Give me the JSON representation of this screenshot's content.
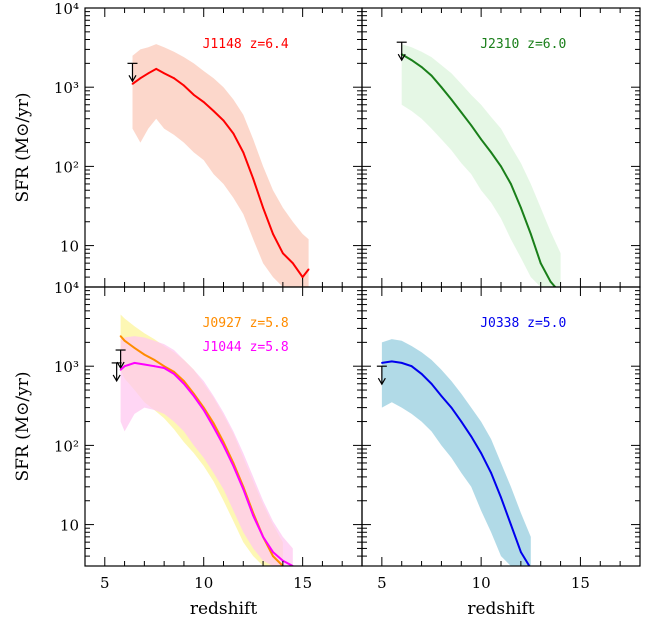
{
  "chart_data": [
    {
      "type": "line",
      "panel": "top-left",
      "xlabel": "",
      "ylabel": "SFR (M⊙/yr)",
      "xlim": [
        4,
        18
      ],
      "ylim": [
        3,
        10000
      ],
      "yscale": "log",
      "yticks": [
        "10",
        "10²",
        "10³",
        "10⁴"
      ],
      "xticks": [],
      "series": [
        {
          "name": "J1148 z=6.4",
          "color": "#ff0000",
          "band_color": "#fcd5c8",
          "x": [
            6.4,
            6.8,
            7.2,
            7.6,
            8.0,
            8.5,
            9.0,
            9.5,
            10.0,
            10.5,
            11.0,
            11.5,
            12.0,
            12.5,
            13.0,
            13.5,
            14.0,
            14.5,
            15.0,
            15.3
          ],
          "y": [
            1100,
            1300,
            1500,
            1700,
            1500,
            1300,
            1050,
            800,
            650,
            500,
            380,
            260,
            150,
            70,
            30,
            14,
            8,
            6,
            4,
            5
          ],
          "band_low": [
            300,
            200,
            300,
            400,
            300,
            250,
            200,
            150,
            120,
            80,
            60,
            40,
            25,
            12,
            6,
            4,
            3,
            3,
            3,
            3
          ],
          "band_high": [
            2500,
            3000,
            3200,
            3500,
            3200,
            2800,
            2400,
            2000,
            1600,
            1300,
            1000,
            700,
            450,
            220,
            100,
            50,
            30,
            20,
            14,
            12
          ],
          "upper_limit": {
            "x": 6.4,
            "y": 2000
          }
        }
      ]
    },
    {
      "type": "line",
      "panel": "top-right",
      "xlabel": "",
      "ylabel": "",
      "xlim": [
        4,
        18
      ],
      "ylim": [
        3,
        10000
      ],
      "yscale": "log",
      "series": [
        {
          "name": "J2310 z=6.0",
          "color": "#1a7f1a",
          "band_color": "#e4f7e4",
          "x": [
            6.0,
            6.5,
            7.0,
            7.5,
            8.0,
            8.5,
            9.0,
            9.5,
            10.0,
            10.5,
            11.0,
            11.5,
            12.0,
            12.5,
            13.0,
            13.5,
            14.0
          ],
          "y": [
            2600,
            2200,
            1800,
            1400,
            1000,
            700,
            480,
            330,
            220,
            150,
            100,
            60,
            30,
            14,
            6,
            3.5,
            2.5
          ],
          "band_low": [
            600,
            500,
            400,
            300,
            220,
            160,
            110,
            80,
            50,
            35,
            22,
            12,
            7,
            4,
            3,
            3,
            3
          ],
          "band_high": [
            3500,
            3200,
            2800,
            2400,
            1900,
            1500,
            1100,
            800,
            600,
            420,
            300,
            180,
            110,
            60,
            30,
            15,
            8
          ],
          "upper_limit": {
            "x": 6.0,
            "y": 3700
          }
        }
      ]
    },
    {
      "type": "line",
      "panel": "bottom-left",
      "xlabel": "redshift",
      "ylabel": "SFR (M⊙/yr)",
      "xlim": [
        4,
        18
      ],
      "ylim": [
        3,
        10000
      ],
      "yscale": "log",
      "yticks": [
        "10",
        "10²",
        "10³",
        "10⁴"
      ],
      "xticks": [
        "5",
        "10",
        "15"
      ],
      "series": [
        {
          "name": "J0927 z=5.8",
          "color": "#ff8c00",
          "band_color": "#fdf7b0",
          "x": [
            5.8,
            6.0,
            6.5,
            7.0,
            7.5,
            8.0,
            8.5,
            9.0,
            9.5,
            10.0,
            10.5,
            11.0,
            11.5,
            12.0,
            12.5,
            13.0,
            13.5,
            14.0
          ],
          "y": [
            2400,
            2100,
            1700,
            1400,
            1200,
            1000,
            850,
            650,
            450,
            300,
            190,
            110,
            60,
            30,
            14,
            7,
            4,
            3
          ],
          "band_low": [
            900,
            700,
            500,
            350,
            280,
            220,
            160,
            110,
            80,
            55,
            35,
            20,
            11,
            6,
            4,
            3,
            3,
            3
          ],
          "band_high": [
            4500,
            4000,
            3200,
            2600,
            2200,
            1800,
            1500,
            1200,
            900,
            600,
            400,
            240,
            140,
            70,
            35,
            18,
            10,
            6
          ],
          "upper_limit": {
            "x": 5.8,
            "y": 1600
          }
        },
        {
          "name": "J1044 z=5.8",
          "color": "#ff00ff",
          "band_color": "#ffc8f0",
          "x": [
            5.8,
            6.0,
            6.5,
            7.0,
            7.5,
            8.0,
            8.5,
            9.0,
            9.5,
            10.0,
            10.5,
            11.0,
            11.5,
            12.0,
            12.5,
            13.0,
            13.5,
            14.0,
            14.5
          ],
          "y": [
            900,
            1000,
            1100,
            1050,
            1000,
            950,
            800,
            600,
            420,
            280,
            170,
            100,
            55,
            28,
            13,
            7,
            4.5,
            3.5,
            3
          ],
          "band_low": [
            200,
            150,
            250,
            300,
            280,
            250,
            200,
            150,
            100,
            70,
            45,
            28,
            15,
            8,
            5,
            3.5,
            3,
            3,
            3
          ],
          "band_high": [
            2200,
            2300,
            2400,
            2300,
            2100,
            1900,
            1600,
            1200,
            900,
            650,
            420,
            260,
            150,
            80,
            40,
            20,
            11,
            7,
            5
          ],
          "upper_limit": {
            "x": 5.6,
            "y": 1100
          }
        }
      ]
    },
    {
      "type": "line",
      "panel": "bottom-right",
      "xlabel": "redshift",
      "ylabel": "",
      "xlim": [
        4,
        18
      ],
      "ylim": [
        3,
        10000
      ],
      "yscale": "log",
      "xticks": [
        "5",
        "10",
        "15"
      ],
      "series": [
        {
          "name": "J0338 z=5.0",
          "color": "#0000ee",
          "band_color": "#add8e6",
          "x": [
            5.0,
            5.5,
            6.0,
            6.5,
            7.0,
            7.5,
            8.0,
            8.5,
            9.0,
            9.5,
            10.0,
            10.5,
            11.0,
            11.5,
            12.0,
            12.5
          ],
          "y": [
            1100,
            1150,
            1100,
            1000,
            800,
            600,
            420,
            300,
            200,
            130,
            80,
            45,
            22,
            10,
            4.5,
            2.8
          ],
          "band_low": [
            300,
            350,
            300,
            250,
            200,
            150,
            100,
            70,
            45,
            30,
            15,
            8,
            4,
            3,
            3,
            3
          ],
          "band_high": [
            2000,
            2200,
            2100,
            1800,
            1500,
            1200,
            900,
            650,
            450,
            300,
            200,
            120,
            60,
            30,
            14,
            7
          ],
          "upper_limit": {
            "x": 5.0,
            "y": 1000
          }
        }
      ]
    }
  ]
}
